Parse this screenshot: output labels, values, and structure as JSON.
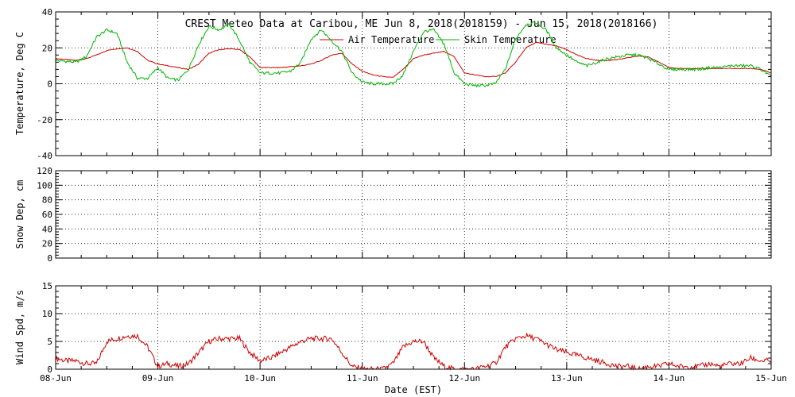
{
  "title": "CREST Meteo Data at Caribou, ME   Jun  8, 2018(2018159) - Jun 15, 2018(2018166)",
  "xlabel": "Date (EST)",
  "x_ticks": [
    "08-Jun",
    "09-Jun",
    "10-Jun",
    "11-Jun",
    "12-Jun",
    "13-Jun",
    "14-Jun",
    "15-Jun"
  ],
  "colors": {
    "air": "#cc0000",
    "skin": "#00b400",
    "wind": "#cc0000"
  },
  "chart_data": [
    {
      "type": "line",
      "ylabel": "Temperature, Deg C",
      "ylim": [
        -40,
        40
      ],
      "y_ticks": [
        -40,
        -20,
        0,
        20,
        40
      ],
      "xlim": [
        "2018-06-08",
        "2018-06-15"
      ],
      "legend_placement": "top-center",
      "series": [
        {
          "name": "Air Temperature",
          "x_days": [
            0,
            0.1,
            0.2,
            0.3,
            0.4,
            0.5,
            0.6,
            0.7,
            0.8,
            0.9,
            1,
            1.1,
            1.2,
            1.3,
            1.4,
            1.5,
            1.6,
            1.7,
            1.8,
            1.9,
            2,
            2.1,
            2.2,
            2.3,
            2.4,
            2.5,
            2.6,
            2.7,
            2.8,
            2.9,
            3,
            3.1,
            3.2,
            3.3,
            3.4,
            3.5,
            3.6,
            3.7,
            3.8,
            3.9,
            4,
            4.1,
            4.2,
            4.3,
            4.4,
            4.5,
            4.6,
            4.7,
            4.8,
            4.9,
            5,
            5.1,
            5.2,
            5.3,
            5.4,
            5.5,
            5.6,
            5.7,
            5.8,
            5.9,
            6,
            6.1,
            6.2,
            6.3,
            6.4,
            6.5,
            6.6,
            6.7,
            6.8,
            6.9,
            7
          ],
          "values": [
            14,
            13.5,
            13,
            14,
            16,
            18.5,
            19.5,
            20,
            18,
            13,
            11,
            10,
            9,
            8,
            11,
            17,
            19,
            19.5,
            19,
            15,
            9,
            9,
            9,
            9.5,
            10,
            11,
            13,
            16,
            17,
            11,
            7,
            5,
            4,
            3.5,
            8,
            14,
            16,
            17,
            18,
            15,
            6,
            5,
            4,
            4,
            6,
            12,
            20,
            23,
            22,
            21,
            19,
            16,
            14,
            13,
            13,
            13.5,
            14.5,
            15.5,
            15,
            12,
            9,
            8.5,
            8.5,
            8.5,
            8.5,
            8.5,
            8.5,
            8.5,
            8.5,
            8,
            6
          ]
        },
        {
          "name": "Skin Temperature",
          "x_days": [
            0,
            0.1,
            0.2,
            0.3,
            0.4,
            0.5,
            0.6,
            0.7,
            0.8,
            0.9,
            1,
            1.1,
            1.2,
            1.3,
            1.4,
            1.5,
            1.6,
            1.7,
            1.8,
            1.9,
            2,
            2.1,
            2.2,
            2.3,
            2.4,
            2.5,
            2.6,
            2.7,
            2.8,
            2.9,
            3,
            3.1,
            3.2,
            3.3,
            3.4,
            3.5,
            3.6,
            3.7,
            3.8,
            3.9,
            4,
            4.1,
            4.2,
            4.3,
            4.4,
            4.5,
            4.6,
            4.7,
            4.8,
            4.9,
            5,
            5.1,
            5.2,
            5.3,
            5.4,
            5.5,
            5.6,
            5.7,
            5.8,
            5.9,
            6,
            6.1,
            6.2,
            6.3,
            6.4,
            6.5,
            6.6,
            6.7,
            6.8,
            6.9,
            7
          ],
          "values": [
            13,
            12.5,
            12,
            15,
            26,
            30,
            28,
            12,
            3,
            3,
            9,
            3,
            2,
            8,
            22,
            32,
            30,
            33,
            24,
            12,
            6,
            6,
            6,
            7,
            12,
            25,
            30,
            24,
            18,
            6,
            1,
            0,
            0,
            0,
            5,
            18,
            29,
            30,
            22,
            6,
            0,
            -1,
            -1,
            0,
            8,
            25,
            33,
            34,
            30,
            20,
            16,
            12,
            10,
            12,
            14,
            15,
            16,
            16,
            14,
            11,
            8,
            8,
            8,
            8,
            9,
            9,
            10,
            10,
            10,
            8,
            4
          ]
        }
      ]
    },
    {
      "type": "line",
      "ylabel": "Snow Dep, cm",
      "ylim": [
        0,
        120
      ],
      "y_ticks": [
        0,
        20,
        40,
        60,
        80,
        100,
        120
      ],
      "xlim": [
        "2018-06-08",
        "2018-06-15"
      ],
      "series": []
    },
    {
      "type": "line",
      "ylabel": "Wind Spd, m/s",
      "ylim": [
        0,
        15
      ],
      "y_ticks": [
        0,
        5,
        10,
        15
      ],
      "xlim": [
        "2018-06-08",
        "2018-06-15"
      ],
      "series": [
        {
          "x_days": [
            0,
            0.1,
            0.2,
            0.3,
            0.4,
            0.5,
            0.6,
            0.7,
            0.8,
            0.9,
            1,
            1.1,
            1.2,
            1.3,
            1.4,
            1.5,
            1.6,
            1.7,
            1.8,
            1.9,
            2,
            2.1,
            2.2,
            2.3,
            2.4,
            2.5,
            2.6,
            2.7,
            2.8,
            2.9,
            3,
            3.1,
            3.2,
            3.3,
            3.4,
            3.5,
            3.6,
            3.7,
            3.8,
            3.9,
            4,
            4.1,
            4.2,
            4.3,
            4.4,
            4.5,
            4.6,
            4.7,
            4.8,
            4.9,
            5,
            5.1,
            5.2,
            5.3,
            5.4,
            5.5,
            5.6,
            5.7,
            5.8,
            5.9,
            6,
            6.1,
            6.2,
            6.3,
            6.4,
            6.5,
            6.6,
            6.7,
            6.8,
            6.9,
            7
          ],
          "values": [
            2,
            1.5,
            1.5,
            1,
            1,
            5,
            5.5,
            6,
            6,
            4,
            0.5,
            1,
            0.5,
            1,
            3,
            5,
            5.5,
            5.5,
            5.5,
            3,
            1.5,
            2,
            3,
            4,
            5,
            5.5,
            5.5,
            5.5,
            3,
            0.5,
            0,
            0,
            0,
            1,
            4,
            5,
            5,
            2,
            0.5,
            0,
            0,
            0,
            0.5,
            1,
            4,
            5.5,
            6,
            5.5,
            4.5,
            3.5,
            3,
            2.5,
            2,
            1.5,
            1,
            0.5,
            0.5,
            0,
            0.5,
            0.5,
            1,
            0.5,
            0.5,
            0.5,
            1,
            0.5,
            1,
            1,
            2,
            1.5,
            1.5
          ]
        }
      ]
    }
  ]
}
